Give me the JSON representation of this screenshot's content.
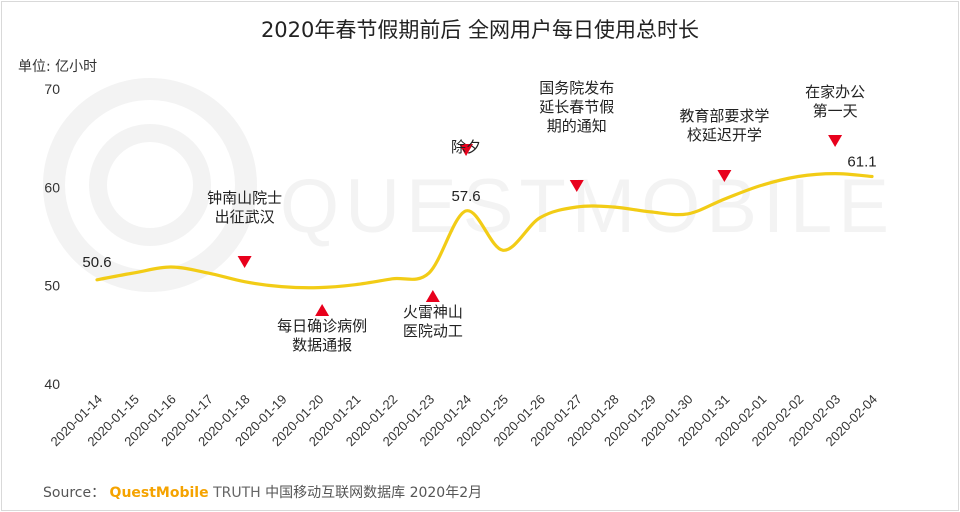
{
  "title": "2020年春节假期前后 全网用户每日使用总时长",
  "unit_label": "单位: 亿小时",
  "source": {
    "prefix": "Source：",
    "brand": "QuestMobile",
    "truth": "TRUTH",
    "rest": "中国移动互联网数据库 2020年2月"
  },
  "watermark": "QUESTMOBILE",
  "colors": {
    "line": "#f2cc16",
    "marker": "#e8001c",
    "axis_text": "#333333",
    "watermark": "#f3f3f3"
  },
  "chart_data": {
    "type": "line",
    "ylim": [
      40,
      70
    ],
    "y_ticks": [
      "40",
      "50",
      "60",
      "70"
    ],
    "categories": [
      "2020-01-14",
      "2020-01-15",
      "2020-01-16",
      "2020-01-17",
      "2020-01-18",
      "2020-01-19",
      "2020-01-20",
      "2020-01-21",
      "2020-01-22",
      "2020-01-23",
      "2020-01-24",
      "2020-01-25",
      "2020-01-26",
      "2020-01-27",
      "2020-01-28",
      "2020-01-29",
      "2020-01-30",
      "2020-01-31",
      "2020-02-01",
      "2020-02-02",
      "2020-02-03",
      "2020-02-04"
    ],
    "values": [
      50.6,
      51.3,
      51.9,
      51.3,
      50.4,
      49.9,
      49.8,
      50.1,
      50.7,
      51.3,
      57.6,
      53.6,
      56.9,
      58.0,
      58.0,
      57.5,
      57.3,
      58.8,
      60.2,
      61.1,
      61.4,
      61.1
    ],
    "value_labels": [
      {
        "index": 0,
        "text": "50.6"
      },
      {
        "index": 10,
        "text": "57.6"
      },
      {
        "index": 21,
        "text": "61.1"
      }
    ],
    "annotations": [
      {
        "x": 4.0,
        "pointing": "down",
        "lines": [
          "钟南山院士",
          "出征武汉"
        ]
      },
      {
        "x": 6.1,
        "pointing": "up",
        "lines": [
          "每日确诊病例",
          "数据通报"
        ]
      },
      {
        "x": 9.1,
        "pointing": "up",
        "lines": [
          "火雷神山",
          "医院动工"
        ]
      },
      {
        "x": 10.0,
        "pointing": "down",
        "lines": [
          "除夕"
        ]
      },
      {
        "x": 13.0,
        "pointing": "down",
        "lines": [
          "国务院发布",
          "延长春节假",
          "期的通知"
        ]
      },
      {
        "x": 17.0,
        "pointing": "down",
        "lines": [
          "教育部要求学",
          "校延迟开学"
        ]
      },
      {
        "x": 20.0,
        "pointing": "down",
        "lines": [
          "在家办公",
          "第一天"
        ]
      }
    ]
  }
}
